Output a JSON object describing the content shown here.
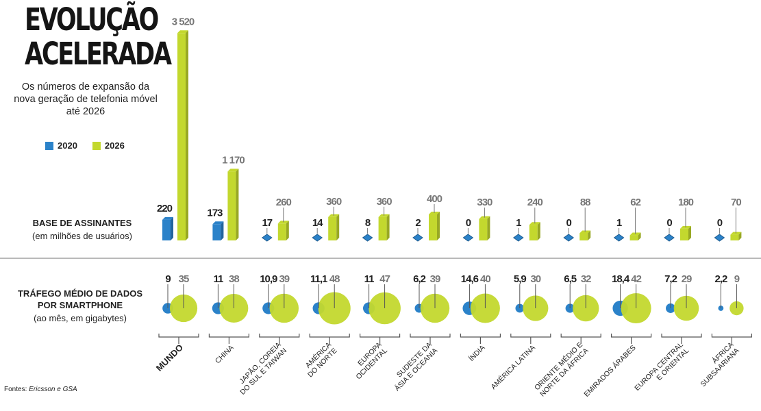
{
  "title_line1": "EVOLUÇÃO",
  "title_line2": "ACELERADA",
  "subtitle": "Os números de expansão da nova geração de telefonia móvel até 2026",
  "legend": [
    {
      "label": "2020",
      "color": "#2b82c9"
    },
    {
      "label": "2026",
      "color": "#c3d82e"
    }
  ],
  "section1": {
    "title": "BASE DE ASSINANTES",
    "subtitle": "(em milhões de usuários)"
  },
  "section2": {
    "title_line1": "TRÁFEGO MÉDIO DE DADOS",
    "title_line2": "POR SMARTPHONE",
    "subtitle": "(ao mês, em gigabytes)"
  },
  "source_label": "Fontes:",
  "source_names": "Ericsson e GSA",
  "chart_data": [
    {
      "type": "bar",
      "title": "BASE DE ASSINANTES",
      "ylabel": "(em milhões de usuários)",
      "categories": [
        "MUNDO",
        "CHINA",
        "JAPÃO, COREIA DO SUL E TAIWAN",
        "AMÉRICA DO NORTE",
        "EUROPA OCIDENTAL",
        "SUDESTE DA ÁSIA E OCEANIA",
        "ÍNDIA",
        "AMÉRICA LATINA",
        "ORIENTE MÉDIO E NORTE DA ÁFRICA",
        "EMIRADOS ÁRABES",
        "EUROPA CENTRAL E ORIENTAL",
        "ÁFRICA SUBSAARIANA"
      ],
      "series": [
        {
          "name": "2020",
          "values": [
            220,
            173,
            17,
            14,
            8,
            2,
            0,
            1,
            0,
            1,
            0,
            0
          ],
          "labels": [
            "220",
            "173",
            "17",
            "14",
            "8",
            "2",
            "0",
            "1",
            "0",
            "1",
            "0",
            "0"
          ]
        },
        {
          "name": "2026",
          "values": [
            3520,
            1170,
            260,
            360,
            360,
            400,
            330,
            240,
            88,
            62,
            180,
            70
          ],
          "labels": [
            "3 520",
            "1 170",
            "260",
            "360",
            "360",
            "400",
            "330",
            "240",
            "88",
            "62",
            "180",
            "70"
          ]
        }
      ]
    },
    {
      "type": "scatter",
      "title": "TRÁFEGO MÉDIO DE DADOS POR SMARTPHONE",
      "ylabel": "(ao mês, em gigabytes)",
      "categories": [
        "MUNDO",
        "CHINA",
        "JAPÃO, COREIA DO SUL E TAIWAN",
        "AMÉRICA DO NORTE",
        "EUROPA OCIDENTAL",
        "SUDESTE DA ÁSIA E OCEANIA",
        "ÍNDIA",
        "AMÉRICA LATINA",
        "ORIENTE MÉDIO E NORTE DA ÁFRICA",
        "EMIRADOS ÁRABES",
        "EUROPA CENTRAL E ORIENTAL",
        "ÁFRICA SUBSAARIANA"
      ],
      "series": [
        {
          "name": "2020",
          "values": [
            9,
            11,
            10.9,
            11.1,
            11,
            6.2,
            14.6,
            5.9,
            6.5,
            18.4,
            7.2,
            2.2
          ],
          "labels": [
            "9",
            "11",
            "10,9",
            "11,1",
            "11",
            "6,2",
            "14,6",
            "5,9",
            "6,5",
            "18,4",
            "7,2",
            "2,2"
          ]
        },
        {
          "name": "2026",
          "values": [
            35,
            38,
            39,
            48,
            47,
            39,
            40,
            30,
            32,
            42,
            29,
            9
          ],
          "labels": [
            "35",
            "38",
            "39",
            "48",
            "47",
            "39",
            "40",
            "30",
            "32",
            "42",
            "29",
            "9"
          ]
        }
      ]
    }
  ],
  "region_labels": [
    {
      "lines": [
        "MUNDO"
      ],
      "bold": true
    },
    {
      "lines": [
        "CHINA"
      ],
      "bold": false
    },
    {
      "lines": [
        "JAPÃO, COREIA",
        "DO SUL E TAIWAN"
      ],
      "bold": false
    },
    {
      "lines": [
        "AMÉRICA",
        "DO NORTE"
      ],
      "bold": false
    },
    {
      "lines": [
        "EUROPA",
        "OCIDENTAL"
      ],
      "bold": false
    },
    {
      "lines": [
        "SUDESTE DA",
        "ÁSIA E OCEANIA"
      ],
      "bold": false
    },
    {
      "lines": [
        "ÍNDIA"
      ],
      "bold": false
    },
    {
      "lines": [
        "AMÉRICA LATINA"
      ],
      "bold": false
    },
    {
      "lines": [
        "ORIENTE MÉDIO E",
        "NORTE DA ÁFRICA"
      ],
      "bold": false
    },
    {
      "lines": [
        "EMIRADOS ÁRABES"
      ],
      "bold": false
    },
    {
      "lines": [
        "EUROPA CENTRAL",
        "E ORIENTAL"
      ],
      "bold": false
    },
    {
      "lines": [
        "ÁFRICA",
        "SUBSAARIANA"
      ],
      "bold": false
    }
  ]
}
